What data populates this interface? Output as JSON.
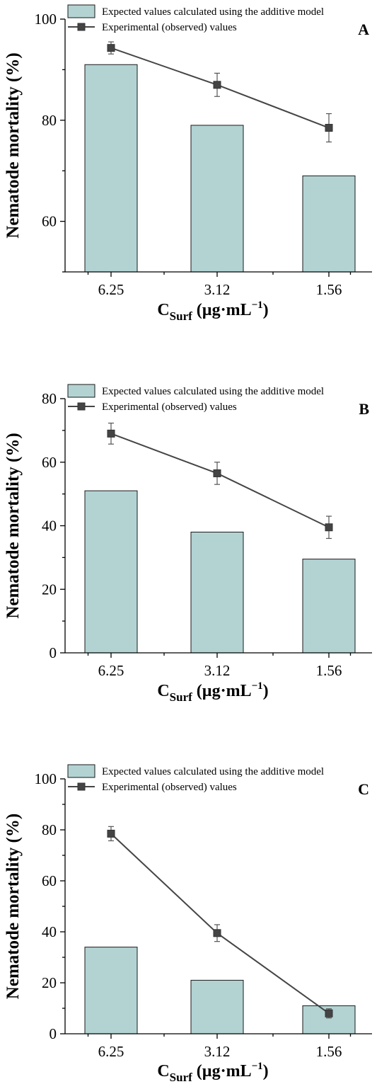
{
  "chart_data": [
    {
      "type": "bar",
      "panel": "A",
      "categories": [
        "6.25",
        "3.12",
        "1.56"
      ],
      "series": [
        {
          "name": "Expected values calculated using the additive model",
          "kind": "bar",
          "values": [
            91,
            79,
            69
          ]
        },
        {
          "name": "Experimental (observed) values",
          "kind": "line",
          "values": [
            94.3,
            87,
            78.5
          ],
          "errors": [
            1.2,
            2.3,
            2.8
          ]
        }
      ],
      "ylabel": "Nematode mortality (%)",
      "xlabel": {
        "main": "C",
        "sub": "Surf",
        "unit": " (µg·mL",
        "sup": "−1",
        "close": ")"
      },
      "ylim": [
        50,
        100
      ],
      "yticks": [
        60,
        80,
        100
      ],
      "legend": "top-left",
      "grid": false
    },
    {
      "type": "bar",
      "panel": "B",
      "categories": [
        "6.25",
        "3.12",
        "1.56"
      ],
      "series": [
        {
          "name": "Expected values calculated using the additive model",
          "kind": "bar",
          "values": [
            51,
            38,
            29.5
          ]
        },
        {
          "name": "Experimental (observed) values",
          "kind": "line",
          "values": [
            69,
            56.5,
            39.5
          ],
          "errors": [
            3.3,
            3.5,
            3.5
          ]
        }
      ],
      "ylabel": "Nematode mortality (%)",
      "xlabel": {
        "main": "C",
        "sub": "Surf",
        "unit": " (µg·mL",
        "sup": "−1",
        "close": ")"
      },
      "ylim": [
        0,
        80
      ],
      "yticks": [
        0,
        20,
        40,
        60,
        80
      ],
      "legend": "top-left",
      "grid": false
    },
    {
      "type": "bar",
      "panel": "C",
      "categories": [
        "6.25",
        "3.12",
        "1.56"
      ],
      "series": [
        {
          "name": "Expected values calculated using the additive model",
          "kind": "bar",
          "values": [
            34,
            21,
            11
          ]
        },
        {
          "name": "Experimental (observed) values",
          "kind": "line",
          "values": [
            78.5,
            39.5,
            8
          ],
          "errors": [
            2.8,
            3.3,
            1.8
          ]
        }
      ],
      "ylabel": "Nematode mortality (%)",
      "xlabel": {
        "main": "C",
        "sub": "Surf",
        "unit": " (µg·mL",
        "sup": "−1",
        "close": ")"
      },
      "ylim": [
        0,
        100
      ],
      "yticks": [
        0,
        20,
        40,
        60,
        80,
        100
      ],
      "legend": "top-left",
      "grid": false
    }
  ]
}
